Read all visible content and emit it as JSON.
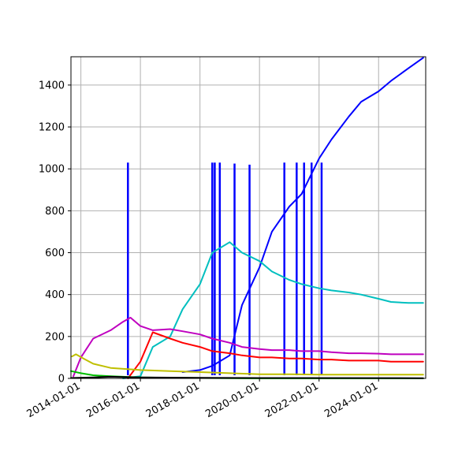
{
  "chart_data": {
    "type": "line",
    "title": "",
    "xlabel": "",
    "ylabel": "",
    "x_axis": "date",
    "xlim": [
      "2013-09-01",
      "2025-08-01"
    ],
    "ylim": [
      0,
      1535
    ],
    "grid": true,
    "x_ticks": [
      "2014-01-01",
      "2016-01-01",
      "2018-01-01",
      "2020-01-01",
      "2022-01-01",
      "2024-01-01"
    ],
    "y_ticks": [
      0,
      200,
      400,
      600,
      800,
      1000,
      1200,
      1400
    ],
    "series": [
      {
        "color": "#0000ff",
        "points": [
          [
            "2017-06-01",
            30
          ],
          [
            "2018-01-01",
            40
          ],
          [
            "2018-06-01",
            60
          ],
          [
            "2019-01-01",
            110
          ],
          [
            "2019-06-01",
            350
          ],
          [
            "2020-01-01",
            530
          ],
          [
            "2020-06-01",
            700
          ],
          [
            "2021-01-01",
            820
          ],
          [
            "2021-06-01",
            880
          ],
          [
            "2022-01-01",
            1050
          ],
          [
            "2022-06-01",
            1140
          ],
          [
            "2023-01-01",
            1250
          ],
          [
            "2023-06-01",
            1320
          ],
          [
            "2024-01-01",
            1370
          ],
          [
            "2024-06-01",
            1420
          ],
          [
            "2025-01-01",
            1480
          ],
          [
            "2025-07-01",
            1530
          ]
        ],
        "spikes": [
          [
            "2015-08-01",
            1030
          ],
          [
            "2018-06-01",
            1030
          ],
          [
            "2018-07-01",
            1030
          ],
          [
            "2018-09-01",
            1030
          ],
          [
            "2019-03-01",
            1025
          ],
          [
            "2019-09-01",
            1020
          ],
          [
            "2020-11-01",
            1030
          ],
          [
            "2021-04-01",
            1030
          ],
          [
            "2021-07-01",
            1030
          ],
          [
            "2021-10-01",
            1030
          ],
          [
            "2022-02-01",
            1030
          ]
        ]
      },
      {
        "color": "#00bfbf",
        "points": [
          [
            "2015-06-01",
            0
          ],
          [
            "2016-01-01",
            10
          ],
          [
            "2016-06-01",
            150
          ],
          [
            "2017-01-01",
            200
          ],
          [
            "2017-06-01",
            330
          ],
          [
            "2018-01-01",
            450
          ],
          [
            "2018-06-01",
            600
          ],
          [
            "2019-01-01",
            650
          ],
          [
            "2019-06-01",
            600
          ],
          [
            "2020-01-01",
            560
          ],
          [
            "2020-06-01",
            510
          ],
          [
            "2021-01-01",
            470
          ],
          [
            "2021-06-01",
            450
          ],
          [
            "2022-01-01",
            430
          ],
          [
            "2022-06-01",
            420
          ],
          [
            "2023-01-01",
            410
          ],
          [
            "2023-06-01",
            400
          ],
          [
            "2024-01-01",
            380
          ],
          [
            "2024-06-01",
            365
          ],
          [
            "2025-01-01",
            360
          ],
          [
            "2025-07-01",
            360
          ]
        ]
      },
      {
        "color": "#ff0000",
        "points": [
          [
            "2015-08-01",
            0
          ],
          [
            "2016-01-01",
            80
          ],
          [
            "2016-06-01",
            220
          ],
          [
            "2017-01-01",
            190
          ],
          [
            "2017-06-01",
            170
          ],
          [
            "2018-01-01",
            150
          ],
          [
            "2018-06-01",
            130
          ],
          [
            "2019-01-01",
            120
          ],
          [
            "2019-06-01",
            110
          ],
          [
            "2020-01-01",
            100
          ],
          [
            "2020-06-01",
            100
          ],
          [
            "2021-01-01",
            95
          ],
          [
            "2021-06-01",
            95
          ],
          [
            "2022-01-01",
            90
          ],
          [
            "2022-06-01",
            90
          ],
          [
            "2023-01-01",
            85
          ],
          [
            "2023-06-01",
            85
          ],
          [
            "2024-01-01",
            85
          ],
          [
            "2024-06-01",
            80
          ],
          [
            "2025-01-01",
            80
          ],
          [
            "2025-07-01",
            80
          ]
        ]
      },
      {
        "color": "#bf00bf",
        "points": [
          [
            "2013-10-01",
            10
          ],
          [
            "2014-01-01",
            100
          ],
          [
            "2014-06-01",
            190
          ],
          [
            "2015-01-01",
            230
          ],
          [
            "2015-06-01",
            270
          ],
          [
            "2015-09-01",
            290
          ],
          [
            "2016-01-01",
            250
          ],
          [
            "2016-06-01",
            230
          ],
          [
            "2017-01-01",
            235
          ],
          [
            "2017-06-01",
            225
          ],
          [
            "2018-01-01",
            210
          ],
          [
            "2018-06-01",
            190
          ],
          [
            "2019-01-01",
            170
          ],
          [
            "2019-06-01",
            150
          ],
          [
            "2020-01-01",
            140
          ],
          [
            "2020-06-01",
            135
          ],
          [
            "2021-01-01",
            135
          ],
          [
            "2021-06-01",
            130
          ],
          [
            "2022-01-01",
            130
          ],
          [
            "2022-06-01",
            125
          ],
          [
            "2023-01-01",
            120
          ],
          [
            "2023-06-01",
            120
          ],
          [
            "2024-01-01",
            118
          ],
          [
            "2024-06-01",
            115
          ],
          [
            "2025-01-01",
            115
          ],
          [
            "2025-07-01",
            115
          ]
        ]
      },
      {
        "color": "#bfbf00",
        "points": [
          [
            "2013-09-15",
            105
          ],
          [
            "2013-11-01",
            115
          ],
          [
            "2014-02-01",
            95
          ],
          [
            "2014-06-01",
            70
          ],
          [
            "2015-01-01",
            50
          ],
          [
            "2016-01-01",
            40
          ],
          [
            "2017-01-01",
            35
          ],
          [
            "2018-01-01",
            30
          ],
          [
            "2019-01-01",
            25
          ],
          [
            "2020-01-01",
            20
          ],
          [
            "2021-01-01",
            20
          ],
          [
            "2022-01-01",
            18
          ],
          [
            "2023-01-01",
            18
          ],
          [
            "2024-01-01",
            18
          ],
          [
            "2025-07-01",
            18
          ]
        ]
      },
      {
        "color": "#00bf00",
        "points": [
          [
            "2013-09-01",
            35
          ],
          [
            "2014-01-01",
            25
          ],
          [
            "2014-06-01",
            15
          ],
          [
            "2015-01-01",
            10
          ],
          [
            "2016-01-01",
            5
          ],
          [
            "2017-01-01",
            3
          ],
          [
            "2018-01-01",
            2
          ],
          [
            "2019-01-01",
            1
          ],
          [
            "2020-01-01",
            0
          ],
          [
            "2025-07-01",
            0
          ]
        ]
      },
      {
        "color": "#000000",
        "points": [
          [
            "2013-09-01",
            2
          ],
          [
            "2014-06-01",
            5
          ],
          [
            "2015-01-01",
            8
          ],
          [
            "2016-01-01",
            5
          ],
          [
            "2018-01-01",
            3
          ],
          [
            "2020-01-01",
            2
          ],
          [
            "2025-07-01",
            1
          ]
        ]
      }
    ]
  }
}
